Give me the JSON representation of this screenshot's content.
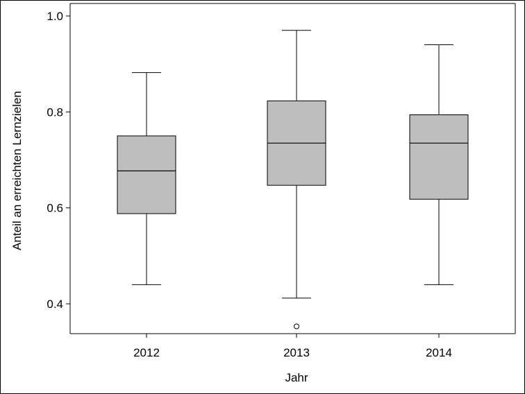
{
  "chart_data": {
    "type": "boxplot",
    "title": "",
    "xlabel": "Jahr",
    "ylabel": "Anteil an erreichten Lernzielen",
    "ylim": [
      0.34,
      1.0
    ],
    "yticks": [
      "0.4",
      "0.6",
      "0.8",
      "1.0"
    ],
    "categories": [
      "2012",
      "2013",
      "2014"
    ],
    "boxes": [
      {
        "category": "2012",
        "whisker_low": 0.44,
        "q1": 0.588,
        "median": 0.677,
        "q3": 0.75,
        "whisker_high": 0.882,
        "outliers": []
      },
      {
        "category": "2013",
        "whisker_low": 0.412,
        "q1": 0.647,
        "median": 0.735,
        "q3": 0.823,
        "whisker_high": 0.97,
        "outliers": [
          0.353
        ]
      },
      {
        "category": "2014",
        "whisker_low": 0.44,
        "q1": 0.618,
        "median": 0.735,
        "q3": 0.794,
        "whisker_high": 0.94,
        "outliers": []
      }
    ],
    "box_fill": "#bebebe",
    "line_color": "#000000",
    "grid": false,
    "legend": "none"
  }
}
